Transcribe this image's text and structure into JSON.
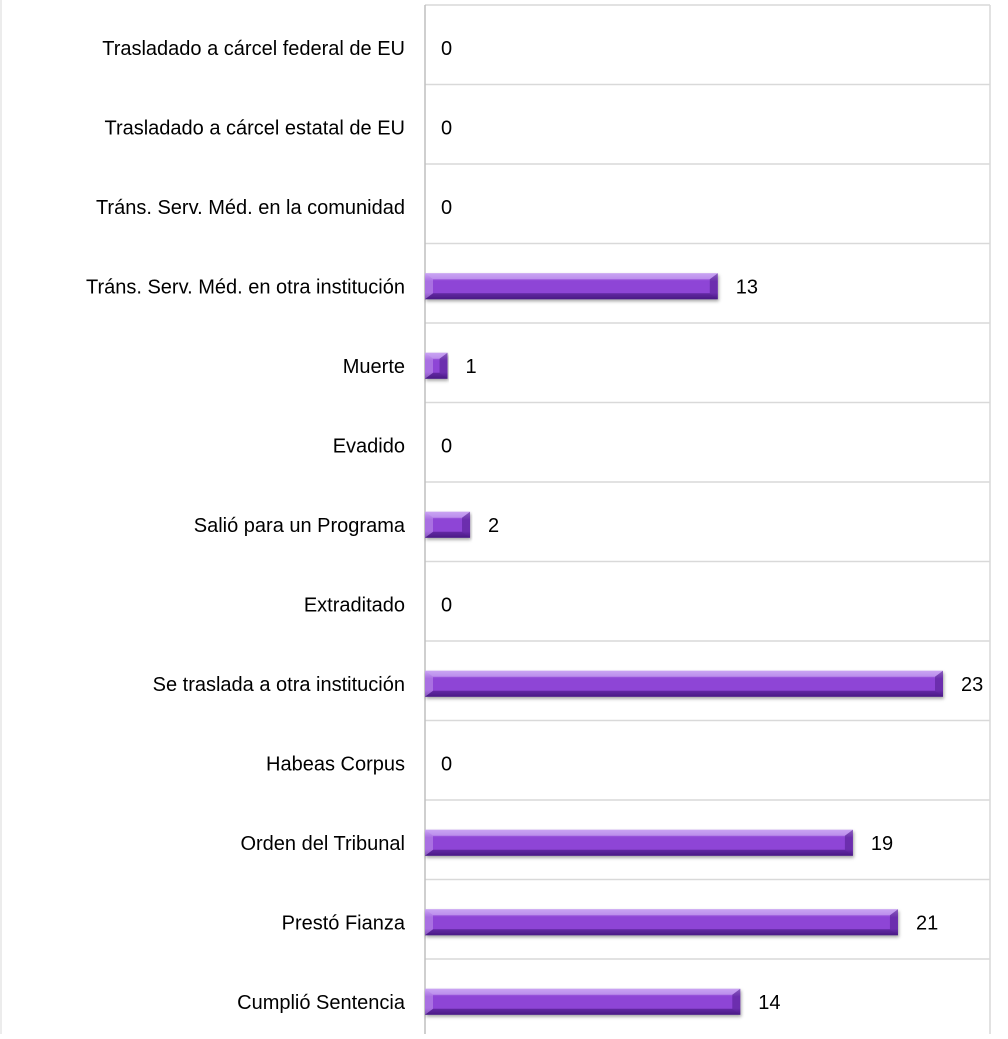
{
  "chart_data": {
    "type": "bar",
    "orientation": "horizontal",
    "categories": [
      "Trasladado a cárcel federal de EU",
      "Trasladado a cárcel estatal de EU",
      "Tráns. Serv. Méd. en la comunidad",
      "Tráns. Serv. Méd. en otra institución",
      "Muerte",
      "Evadido",
      "Salió para un Programa",
      "Extraditado",
      "Se traslada a otra institución",
      "Habeas Corpus",
      "Orden del Tribunal",
      "Prestó Fianza",
      "Cumplió Sentencia"
    ],
    "values": [
      0,
      0,
      0,
      13,
      1,
      0,
      2,
      0,
      23,
      0,
      19,
      21,
      14
    ],
    "data_labels": [
      "0",
      "0",
      "0",
      "13",
      "1",
      "0",
      "2",
      "0",
      "23",
      "0",
      "19",
      "21",
      "14"
    ],
    "title": "",
    "xlabel": "",
    "ylabel": "",
    "xlim": [
      0,
      26
    ],
    "grid": true,
    "legend": "none",
    "bar_color": "#8e44d6",
    "bar_color_light": "#c9a4f2",
    "bar_color_dark": "#4a1a86",
    "grid_color": "#d9d9d9",
    "axis_color": "#bfbfbf"
  }
}
